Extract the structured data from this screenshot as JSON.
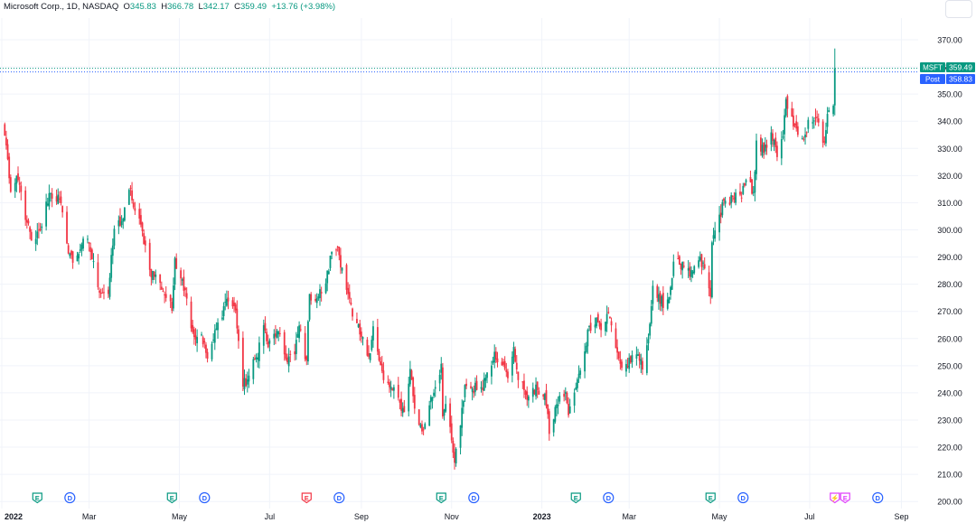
{
  "header": {
    "title": "Microsoft Corp., 1D, NASDAQ",
    "o_label": "O",
    "o_value": "345.83",
    "h_label": "H",
    "h_value": "366.78",
    "l_label": "L",
    "l_value": "342.17",
    "c_label": "C",
    "c_value": "359.49",
    "change": "+13.76 (+3.98%)"
  },
  "price_tags": [
    {
      "label": "MSFT",
      "value": "359.49",
      "price": 359.49,
      "color": "#089981"
    },
    {
      "label": "Post",
      "value": "358.83",
      "price": 358.83,
      "color": "#2962ff"
    }
  ],
  "colors": {
    "up": "#089981",
    "down": "#f23645",
    "event_earnings": "#089981",
    "event_dividend": "#2962ff",
    "event_red": "#f23645",
    "event_split": "#e040fb"
  },
  "events": [
    {
      "type": "E",
      "color": "#089981",
      "date": "2022-01-25"
    },
    {
      "type": "D",
      "color": "#2962ff",
      "date": "2022-02-16"
    },
    {
      "type": "E",
      "color": "#089981",
      "date": "2022-04-26"
    },
    {
      "type": "D",
      "color": "#2962ff",
      "date": "2022-05-18"
    },
    {
      "type": "E",
      "color": "#f23645",
      "date": "2022-07-26"
    },
    {
      "type": "D",
      "color": "#2962ff",
      "date": "2022-08-17"
    },
    {
      "type": "E",
      "color": "#089981",
      "date": "2022-10-25"
    },
    {
      "type": "D",
      "color": "#2962ff",
      "date": "2022-11-16"
    },
    {
      "type": "E",
      "color": "#089981",
      "date": "2023-01-24"
    },
    {
      "type": "D",
      "color": "#2962ff",
      "date": "2023-02-15"
    },
    {
      "type": "E",
      "color": "#089981",
      "date": "2023-04-25"
    },
    {
      "type": "D",
      "color": "#2962ff",
      "date": "2023-05-17"
    },
    {
      "type": "⚡",
      "color": "#e040fb",
      "date": "2023-07-18"
    },
    {
      "type": "E",
      "color": "#e040fb",
      "date": "2023-07-25"
    },
    {
      "type": "D",
      "color": "#2962ff",
      "date": "2023-08-16"
    }
  ],
  "chart_data": {
    "type": "candlestick",
    "symbol": "MSFT",
    "interval": "1D",
    "ylim": [
      200,
      375
    ],
    "xlim": [
      "2022-01-01",
      "2023-09-05"
    ],
    "y_ticks": [
      "370.00",
      "360.00",
      "350.00",
      "340.00",
      "330.00",
      "320.00",
      "310.00",
      "300.00",
      "290.00",
      "280.00",
      "270.00",
      "260.00",
      "250.00",
      "240.00",
      "230.00",
      "220.00",
      "210.00",
      "200.00"
    ],
    "x_ticks": [
      {
        "label": "2022",
        "date": "2022-01-01",
        "bold": true
      },
      {
        "label": "Mar",
        "date": "2022-03-01",
        "bold": false
      },
      {
        "label": "May",
        "date": "2022-05-01",
        "bold": false
      },
      {
        "label": "Jul",
        "date": "2022-07-01",
        "bold": false
      },
      {
        "label": "Sep",
        "date": "2022-09-01",
        "bold": false
      },
      {
        "label": "Nov",
        "date": "2022-11-01",
        "bold": false
      },
      {
        "label": "2023",
        "date": "2023-01-01",
        "bold": true
      },
      {
        "label": "Mar",
        "date": "2023-03-01",
        "bold": false
      },
      {
        "label": "May",
        "date": "2023-05-01",
        "bold": false
      },
      {
        "label": "Jul",
        "date": "2023-07-01",
        "bold": false
      },
      {
        "label": "Sep",
        "date": "2023-09-01",
        "bold": false
      }
    ],
    "close_path": [
      [
        "2022-01-03",
        334.7
      ],
      [
        "2022-01-05",
        326
      ],
      [
        "2022-01-07",
        314
      ],
      [
        "2022-01-12",
        318.3
      ],
      [
        "2022-01-18",
        302.7
      ],
      [
        "2022-01-21",
        296
      ],
      [
        "2022-01-24",
        296.7
      ],
      [
        "2022-01-27",
        299.8
      ],
      [
        "2022-02-02",
        313.5
      ],
      [
        "2022-02-09",
        311.2
      ],
      [
        "2022-02-14",
        295
      ],
      [
        "2022-02-18",
        287.9
      ],
      [
        "2022-02-24",
        294.6
      ],
      [
        "2022-03-01",
        294.9
      ],
      [
        "2022-03-07",
        278.9
      ],
      [
        "2022-03-14",
        276.4
      ],
      [
        "2022-03-18",
        300.4
      ],
      [
        "2022-03-24",
        304.1
      ],
      [
        "2022-03-29",
        315.4
      ],
      [
        "2022-03-31",
        308.3
      ],
      [
        "2022-04-06",
        299.5
      ],
      [
        "2022-04-11",
        285.3
      ],
      [
        "2022-04-18",
        280.5
      ],
      [
        "2022-04-26",
        270.2
      ],
      [
        "2022-04-28",
        289.6
      ],
      [
        "2022-05-03",
        281.8
      ],
      [
        "2022-05-06",
        274.7
      ],
      [
        "2022-05-11",
        260.6
      ],
      [
        "2022-05-16",
        261.5
      ],
      [
        "2022-05-20",
        252.6
      ],
      [
        "2022-05-24",
        259.6
      ],
      [
        "2022-05-31",
        271.9
      ],
      [
        "2022-06-02",
        274.6
      ],
      [
        "2022-06-08",
        270.4
      ],
      [
        "2022-06-13",
        242.3
      ],
      [
        "2022-06-16",
        244.9
      ],
      [
        "2022-06-22",
        253.1
      ],
      [
        "2022-06-27",
        264.9
      ],
      [
        "2022-06-30",
        256.8
      ],
      [
        "2022-07-06",
        262.8
      ],
      [
        "2022-07-12",
        252.5
      ],
      [
        "2022-07-18",
        254.2
      ],
      [
        "2022-07-21",
        264.8
      ],
      [
        "2022-07-26",
        251.9
      ],
      [
        "2022-07-28",
        276.4
      ],
      [
        "2022-08-02",
        274.8
      ],
      [
        "2022-08-08",
        280.3
      ],
      [
        "2022-08-12",
        291.9
      ],
      [
        "2022-08-16",
        293.5
      ],
      [
        "2022-08-19",
        286.1
      ],
      [
        "2022-08-23",
        276.4
      ],
      [
        "2022-08-26",
        268.1
      ],
      [
        "2022-08-31",
        261.5
      ],
      [
        "2022-09-06",
        253.3
      ],
      [
        "2022-09-09",
        264.5
      ],
      [
        "2022-09-13",
        251.9
      ],
      [
        "2022-09-16",
        244.7
      ],
      [
        "2022-09-22",
        240.9
      ],
      [
        "2022-09-27",
        236.4
      ],
      [
        "2022-09-30",
        232.9
      ],
      [
        "2022-10-04",
        248.8
      ],
      [
        "2022-10-07",
        234.2
      ],
      [
        "2022-10-12",
        225.8
      ],
      [
        "2022-10-14",
        228.6
      ],
      [
        "2022-10-18",
        238.5
      ],
      [
        "2022-10-21",
        242.1
      ],
      [
        "2022-10-25",
        250.7
      ],
      [
        "2022-10-26",
        231.3
      ],
      [
        "2022-10-28",
        235.9
      ],
      [
        "2022-11-03",
        214.3
      ],
      [
        "2022-11-07",
        228
      ],
      [
        "2022-11-10",
        242.9
      ],
      [
        "2022-11-15",
        241.6
      ],
      [
        "2022-11-21",
        242.1
      ],
      [
        "2022-11-25",
        247.5
      ],
      [
        "2022-11-30",
        255.1
      ],
      [
        "2022-12-05",
        250.2
      ],
      [
        "2022-12-09",
        245.4
      ],
      [
        "2022-12-13",
        256.9
      ],
      [
        "2022-12-16",
        244.7
      ],
      [
        "2022-12-20",
        241
      ],
      [
        "2022-12-23",
        238.7
      ],
      [
        "2022-12-29",
        241
      ],
      [
        "2023-01-03",
        239.6
      ],
      [
        "2023-01-06",
        224.9
      ],
      [
        "2023-01-11",
        235.8
      ],
      [
        "2023-01-17",
        240.4
      ],
      [
        "2023-01-19",
        231.8
      ],
      [
        "2023-01-24",
        242
      ],
      [
        "2023-01-27",
        248.2
      ],
      [
        "2023-02-02",
        264.6
      ],
      [
        "2023-02-07",
        267.6
      ],
      [
        "2023-02-10",
        263.1
      ],
      [
        "2023-02-15",
        269.3
      ],
      [
        "2023-02-21",
        254.8
      ],
      [
        "2023-02-24",
        249.2
      ],
      [
        "2023-03-02",
        251.1
      ],
      [
        "2023-03-07",
        254.2
      ],
      [
        "2023-03-10",
        248.6
      ],
      [
        "2023-03-15",
        265.4
      ],
      [
        "2023-03-17",
        279.4
      ],
      [
        "2023-03-22",
        272.8
      ],
      [
        "2023-03-28",
        275.2
      ],
      [
        "2023-03-31",
        288.3
      ],
      [
        "2023-04-04",
        287.2
      ],
      [
        "2023-04-11",
        282.8
      ],
      [
        "2023-04-17",
        288.8
      ],
      [
        "2023-04-21",
        285.8
      ],
      [
        "2023-04-25",
        275.4
      ],
      [
        "2023-04-26",
        295.4
      ],
      [
        "2023-05-01",
        305.6
      ],
      [
        "2023-05-05",
        310.7
      ],
      [
        "2023-05-10",
        312.3
      ],
      [
        "2023-05-16",
        311.7
      ],
      [
        "2023-05-19",
        318.3
      ],
      [
        "2023-05-24",
        313.9
      ],
      [
        "2023-05-26",
        332.9
      ],
      [
        "2023-05-31",
        328.4
      ],
      [
        "2023-06-05",
        335.9
      ],
      [
        "2023-06-09",
        326.8
      ],
      [
        "2023-06-13",
        334.3
      ],
      [
        "2023-06-15",
        348.1
      ],
      [
        "2023-06-20",
        338
      ],
      [
        "2023-06-23",
        335
      ],
      [
        "2023-06-28",
        335.1
      ],
      [
        "2023-06-30",
        340.5
      ],
      [
        "2023-07-06",
        341.3
      ],
      [
        "2023-07-11",
        332.5
      ],
      [
        "2023-07-13",
        342.7
      ],
      [
        "2023-07-17",
        345.7
      ],
      [
        "2023-07-18",
        359.5
      ]
    ]
  }
}
